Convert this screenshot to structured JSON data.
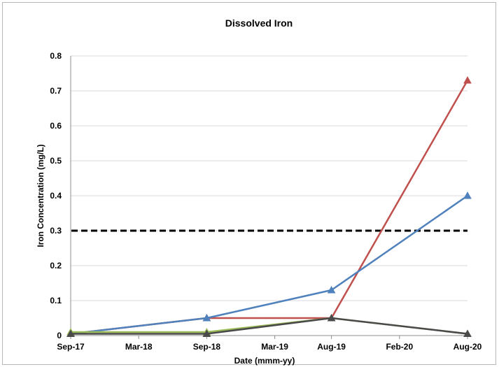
{
  "chart_data": {
    "type": "line",
    "title": "Dissolved Iron",
    "xlabel": "Date (mmm-yy)",
    "ylabel": "Iron Concentration (mg/L)",
    "x_tick_labels": [
      "Sep-17",
      "Mar-18",
      "Sep-18",
      "Mar-19",
      "Aug-19",
      "Feb-20",
      "Aug-20"
    ],
    "x_tick_dates": [
      "2017-09",
      "2018-03",
      "2018-09",
      "2019-03",
      "2019-08",
      "2020-02",
      "2020-08"
    ],
    "y_tick_labels": [
      "0",
      "0.1",
      "0.2",
      "0.3",
      "0.4",
      "0.5",
      "0.6",
      "0.7",
      "0.8"
    ],
    "ylim": [
      0,
      0.8
    ],
    "grid": true,
    "reference_line": {
      "y": 0.3,
      "style": "dashed",
      "color": "#000000"
    },
    "series": [
      {
        "color": "#c0504d",
        "marker": "triangle",
        "x": [
          "2017-09",
          "2018-09",
          "2019-08",
          "2020-08"
        ],
        "y": [
          0.005,
          0.05,
          0.05,
          0.73
        ]
      },
      {
        "color": "#4f81bd",
        "marker": "triangle",
        "x": [
          "2017-09",
          "2018-09",
          "2019-08",
          "2020-08"
        ],
        "y": [
          0.005,
          0.05,
          0.13,
          0.4
        ]
      },
      {
        "color": "#9bbb59",
        "marker": "triangle",
        "x": [
          "2017-09",
          "2018-09",
          "2019-08",
          "2020-08"
        ],
        "y": [
          0.01,
          0.01,
          0.05,
          0.005
        ]
      },
      {
        "color": "#4a4a4a",
        "marker": "triangle",
        "x": [
          "2017-09",
          "2018-09",
          "2019-08",
          "2020-08"
        ],
        "y": [
          0.005,
          0.005,
          0.05,
          0.005
        ]
      }
    ]
  }
}
